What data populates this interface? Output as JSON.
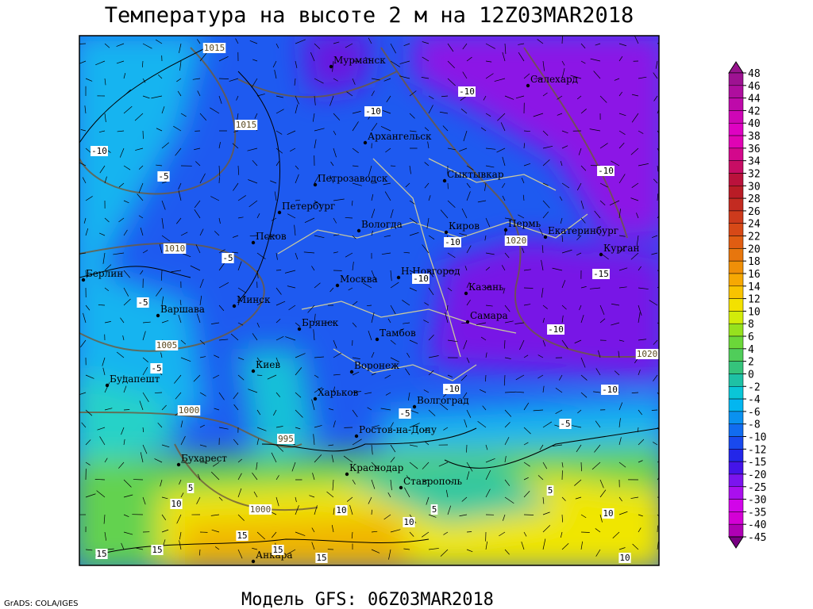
{
  "header": {
    "title": "Температура на высоте 2 м на 12Z03MAR2018"
  },
  "footer": {
    "model": "Модель GFS: 06Z03MAR2018",
    "credit": "GrADS: COLA/IGES"
  },
  "colorbar": {
    "levels": [
      48,
      46,
      44,
      42,
      40,
      38,
      36,
      34,
      32,
      30,
      28,
      26,
      24,
      22,
      20,
      18,
      16,
      14,
      12,
      10,
      8,
      6,
      4,
      2,
      0,
      -2,
      -4,
      -6,
      -8,
      -10,
      -12,
      -15,
      -20,
      -25,
      -30,
      -35,
      -40,
      -45
    ]
  },
  "map": {
    "cities": [
      "Мурманск",
      "Салехард",
      "Архангельск",
      "Петрозаводск",
      "Сыктывкар",
      "Петербург",
      "Вологда",
      "Киров",
      "Пермь",
      "Екатеринбург",
      "Курган",
      "Псков",
      "Берлин",
      "Н.Новгород",
      "Москва",
      "Казань",
      "Минск",
      "Варшава",
      "Самара",
      "Брянск",
      "Тамбов",
      "Киев",
      "Воронеж",
      "Будапешт",
      "Харьков",
      "Волгоград",
      "Ростов-на-Дону",
      "Бухарест",
      "Краснодар",
      "Ставрополь",
      "Анкара"
    ],
    "isobar_labels": [
      1015,
      1015,
      1010,
      1005,
      1000,
      995,
      1000,
      1020,
      1020
    ],
    "isotherm_labels": [
      -10,
      -10,
      -10,
      -10,
      -10,
      -10,
      -10,
      -10,
      -10,
      -5,
      -5,
      -5,
      -5,
      -5,
      -5,
      -15,
      5,
      5,
      5,
      10,
      10,
      10,
      10,
      10,
      15,
      15,
      15,
      15,
      15
    ]
  }
}
